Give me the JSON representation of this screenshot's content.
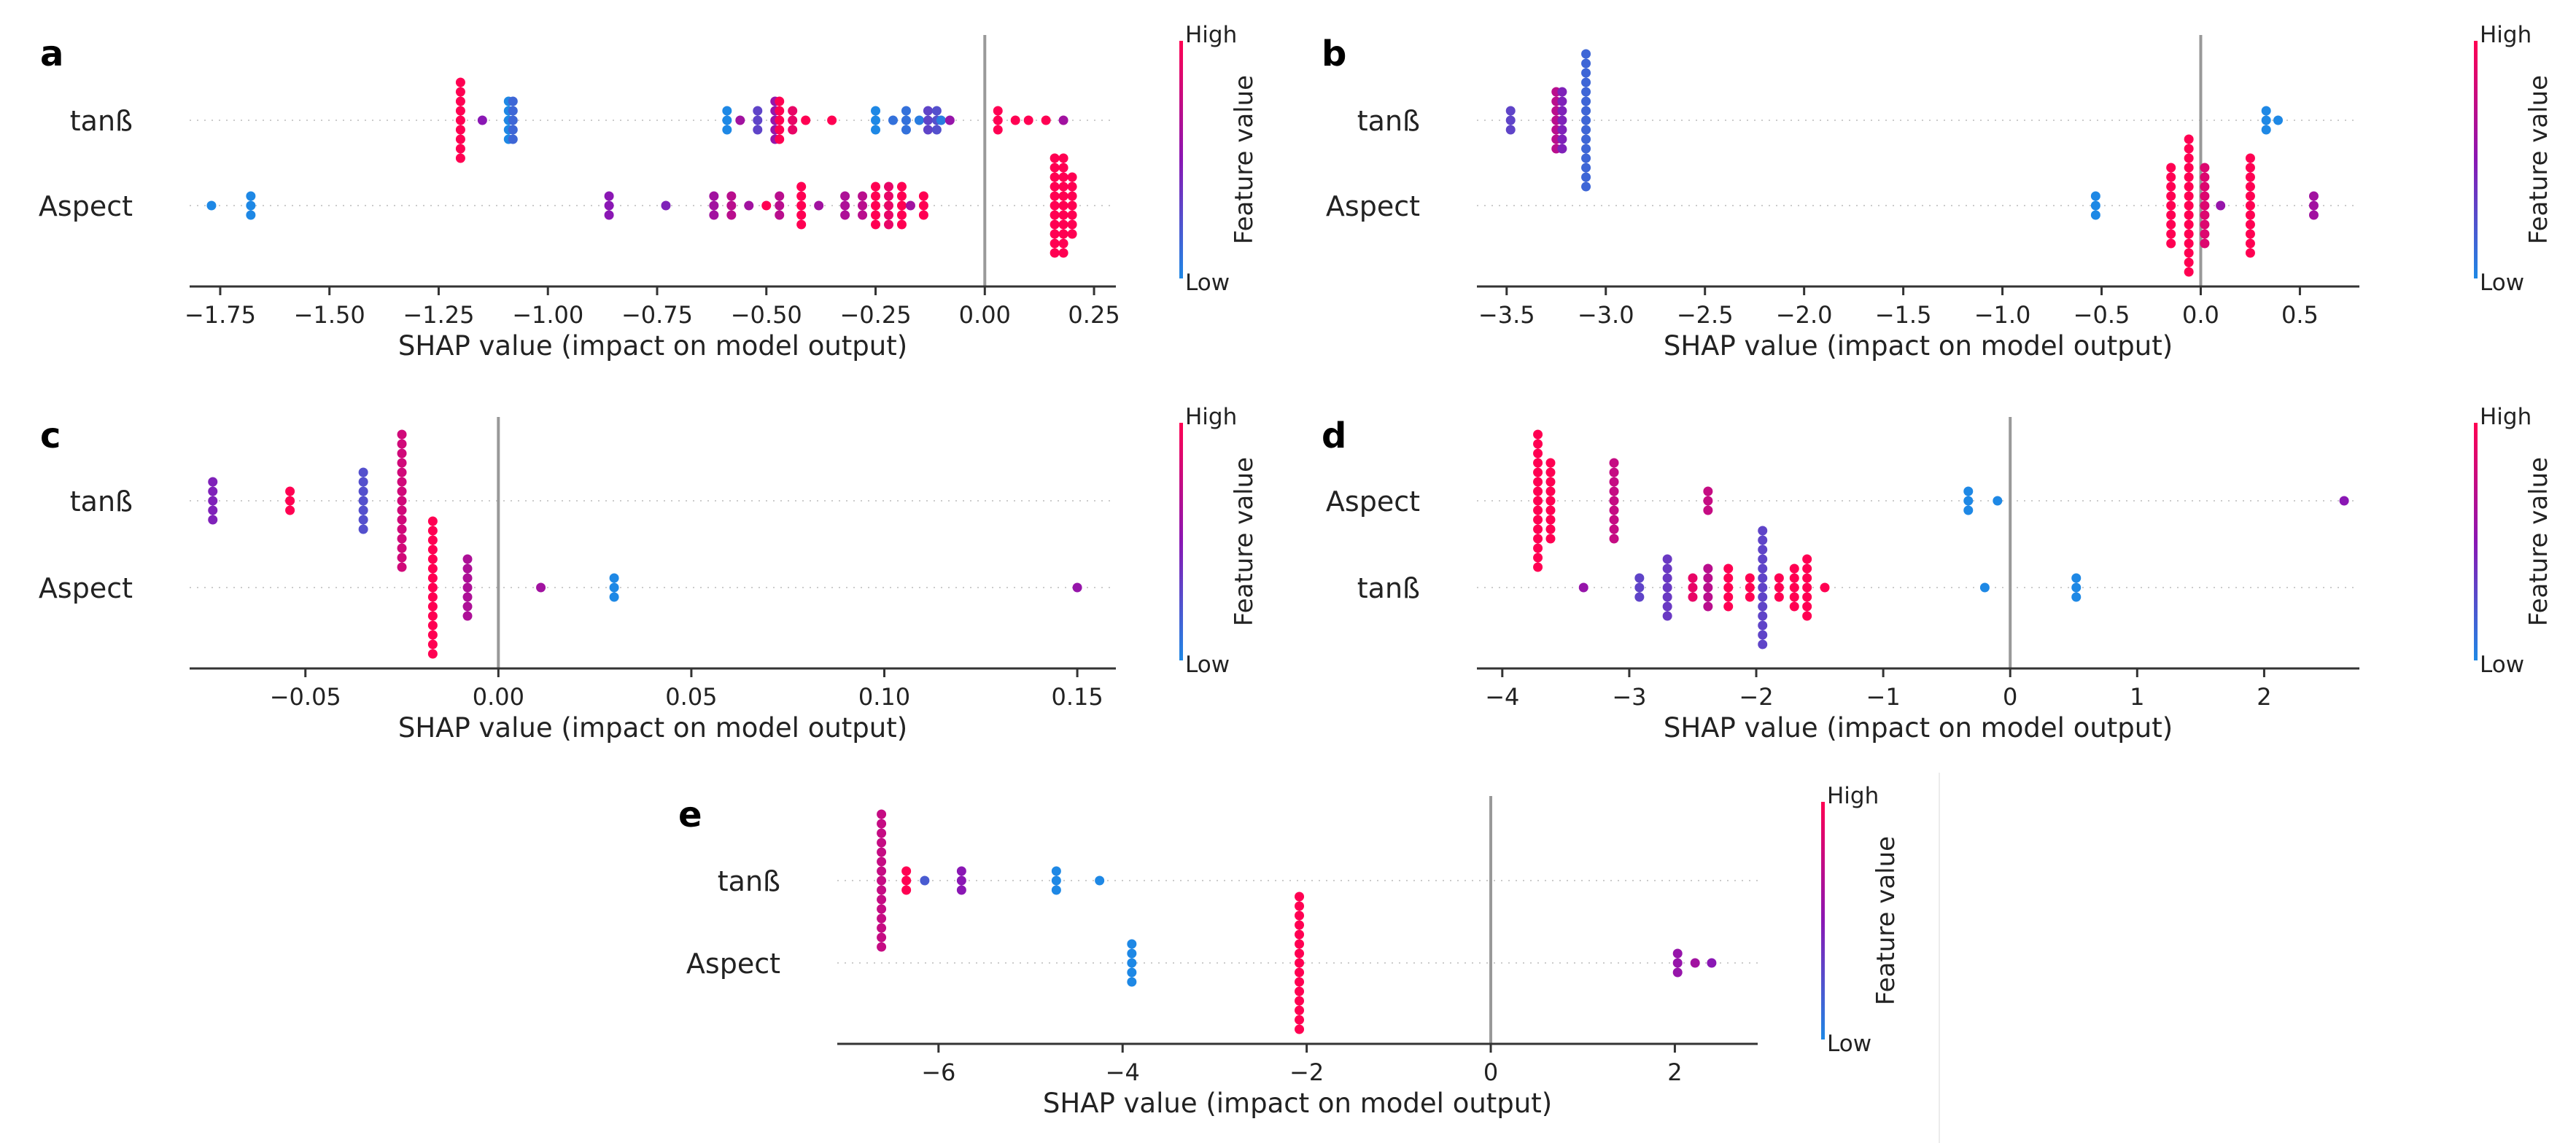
{
  "colors": {
    "low": "#1e88e5",
    "mid": "#8a17b4",
    "high": "#ff0052",
    "axis": "#333333",
    "zero_line": "#999999",
    "row_line": "#cccccc"
  },
  "chart_data": [
    {
      "id": "a",
      "type": "scatter",
      "panel_label": "a",
      "features": [
        "tanß",
        "Aspect"
      ],
      "xlabel": "SHAP value (impact on model output)",
      "xlim": [
        -1.82,
        0.3
      ],
      "xticks": [
        -1.75,
        -1.5,
        -1.25,
        -1.0,
        -0.75,
        -0.5,
        -0.25,
        0.0,
        0.25
      ],
      "xtick_labels": [
        "−1.75",
        "−1.50",
        "−1.25",
        "−1.00",
        "−0.75",
        "−0.50",
        "−0.25",
        "0.00",
        "0.25"
      ],
      "colorbar": {
        "label": "Feature value",
        "high": "High",
        "low": "Low"
      },
      "points": [
        [
          [
            -1.2,
            1.0,
            9
          ],
          [
            -1.15,
            0.5,
            1
          ],
          [
            -1.09,
            0.0,
            5
          ],
          [
            -1.08,
            0.15,
            5
          ],
          [
            -0.59,
            0.0,
            3
          ],
          [
            -0.56,
            0.6,
            1
          ],
          [
            -0.52,
            0.3,
            3
          ],
          [
            -0.48,
            0.55,
            5
          ],
          [
            -0.47,
            1.0,
            5
          ],
          [
            -0.44,
            0.9,
            3
          ],
          [
            -0.41,
            1.0,
            1
          ],
          [
            -0.35,
            1.0,
            1
          ],
          [
            -0.25,
            0.0,
            3
          ],
          [
            -0.21,
            0.1,
            1
          ],
          [
            -0.18,
            0.1,
            3
          ],
          [
            -0.15,
            0.05,
            1
          ],
          [
            -0.13,
            0.3,
            3
          ],
          [
            -0.11,
            0.25,
            3
          ],
          [
            -0.1,
            0.05,
            1
          ],
          [
            -0.08,
            0.55,
            1
          ],
          [
            0.03,
            1.0,
            3
          ],
          [
            0.07,
            1.0,
            1
          ],
          [
            0.1,
            1.0,
            1
          ],
          [
            0.14,
            1.0,
            1
          ],
          [
            0.18,
            0.6,
            1
          ]
        ],
        [
          [
            -1.77,
            0.0,
            1
          ],
          [
            -1.68,
            0.0,
            3
          ],
          [
            -0.86,
            0.5,
            3
          ],
          [
            -0.73,
            0.45,
            1
          ],
          [
            -0.62,
            0.6,
            3
          ],
          [
            -0.58,
            0.7,
            3
          ],
          [
            -0.54,
            0.6,
            1
          ],
          [
            -0.5,
            1.0,
            1
          ],
          [
            -0.47,
            0.7,
            3
          ],
          [
            -0.42,
            1.0,
            5
          ],
          [
            -0.38,
            0.6,
            1
          ],
          [
            -0.32,
            0.65,
            3
          ],
          [
            -0.28,
            0.7,
            3
          ],
          [
            -0.25,
            1.0,
            5
          ],
          [
            -0.22,
            0.9,
            5
          ],
          [
            -0.19,
            1.0,
            5
          ],
          [
            -0.17,
            0.6,
            1
          ],
          [
            -0.14,
            1.0,
            3
          ],
          [
            0.16,
            1.0,
            11
          ],
          [
            0.18,
            1.0,
            11
          ],
          [
            0.2,
            1.0,
            7
          ]
        ]
      ]
    },
    {
      "id": "b",
      "type": "scatter",
      "panel_label": "b",
      "features": [
        "tanß",
        "Aspect"
      ],
      "xlabel": "SHAP value (impact on model output)",
      "xlim": [
        -3.65,
        0.8
      ],
      "xticks": [
        -3.5,
        -3.0,
        -2.5,
        -2.0,
        -1.5,
        -1.0,
        -0.5,
        0.0,
        0.5
      ],
      "xtick_labels": [
        "−3.5",
        "−3.0",
        "−2.5",
        "−2.0",
        "−1.5",
        "−1.0",
        "−0.5",
        "0.0",
        "0.5"
      ],
      "colorbar": {
        "label": "Feature value",
        "high": "High",
        "low": "Low"
      },
      "points": [
        [
          [
            -3.48,
            0.3,
            3
          ],
          [
            -3.25,
            0.7,
            7
          ],
          [
            -3.22,
            0.45,
            7
          ],
          [
            -3.1,
            0.15,
            15
          ],
          [
            0.33,
            0.0,
            3
          ],
          [
            0.39,
            0.0,
            1
          ]
        ],
        [
          [
            -0.53,
            0.0,
            3
          ],
          [
            -0.15,
            1.0,
            9
          ],
          [
            -0.06,
            1.0,
            15
          ],
          [
            0.02,
            0.85,
            9
          ],
          [
            0.1,
            0.55,
            1
          ],
          [
            0.25,
            1.0,
            11
          ],
          [
            0.57,
            0.6,
            3
          ]
        ]
      ]
    },
    {
      "id": "c",
      "type": "scatter",
      "panel_label": "c",
      "features": [
        "tanß",
        "Aspect"
      ],
      "xlabel": "SHAP value (impact on model output)",
      "xlim": [
        -0.08,
        0.16
      ],
      "xticks": [
        -0.05,
        0.0,
        0.05,
        0.1,
        0.15
      ],
      "xtick_labels": [
        "−0.05",
        "0.00",
        "0.05",
        "0.10",
        "0.15"
      ],
      "colorbar": {
        "label": "Feature value",
        "high": "High",
        "low": "Low"
      },
      "points": [
        [
          [
            -0.074,
            0.45,
            5
          ],
          [
            -0.054,
            1.0,
            3
          ],
          [
            -0.035,
            0.25,
            7
          ],
          [
            -0.025,
            0.8,
            15
          ]
        ],
        [
          [
            -0.017,
            1.0,
            15
          ],
          [
            -0.008,
            0.65,
            7
          ],
          [
            0.011,
            0.6,
            1
          ],
          [
            0.03,
            0.0,
            3
          ],
          [
            0.15,
            0.55,
            1
          ]
        ]
      ]
    },
    {
      "id": "d",
      "type": "scatter",
      "panel_label": "d",
      "features": [
        "Aspect",
        "tanß"
      ],
      "xlabel": "SHAP value (impact on model output)",
      "xlim": [
        -4.2,
        2.75
      ],
      "xticks": [
        -4,
        -3,
        -2,
        -1,
        0,
        1,
        2
      ],
      "xtick_labels": [
        "−4",
        "−3",
        "−2",
        "−1",
        "0",
        "1",
        "2"
      ],
      "colorbar": {
        "label": "Feature value",
        "high": "High",
        "low": "Low"
      },
      "points": [
        [
          [
            -3.72,
            1.0,
            15
          ],
          [
            -3.62,
            1.0,
            9
          ],
          [
            -3.12,
            0.75,
            9
          ],
          [
            -2.38,
            0.75,
            3
          ],
          [
            -0.33,
            0.0,
            3
          ],
          [
            -0.1,
            0.0,
            1
          ],
          [
            2.63,
            0.5,
            1
          ]
        ],
        [
          [
            -3.36,
            0.55,
            1
          ],
          [
            -2.92,
            0.3,
            3
          ],
          [
            -2.7,
            0.35,
            7
          ],
          [
            -2.5,
            0.9,
            3
          ],
          [
            -2.38,
            0.7,
            5
          ],
          [
            -2.22,
            1.0,
            5
          ],
          [
            -2.05,
            1.0,
            3
          ],
          [
            -1.95,
            0.3,
            13
          ],
          [
            -1.82,
            1.0,
            3
          ],
          [
            -1.7,
            1.0,
            5
          ],
          [
            -1.6,
            1.0,
            7
          ],
          [
            -1.46,
            1.0,
            1
          ],
          [
            -0.2,
            0.0,
            1
          ],
          [
            0.52,
            0.0,
            3
          ]
        ]
      ]
    },
    {
      "id": "e",
      "type": "scatter",
      "panel_label": "e",
      "features": [
        "tanß",
        "Aspect"
      ],
      "xlabel": "SHAP value (impact on model output)",
      "xlim": [
        -7.1,
        2.9
      ],
      "xticks": [
        -6,
        -4,
        -2,
        0,
        2
      ],
      "xtick_labels": [
        "−6",
        "−4",
        "−2",
        "0",
        "2"
      ],
      "colorbar": {
        "label": "Feature value",
        "high": "High",
        "low": "Low"
      },
      "points": [
        [
          [
            -6.62,
            0.75,
            15
          ],
          [
            -6.35,
            1.0,
            3
          ],
          [
            -6.15,
            0.2,
            1
          ],
          [
            -5.75,
            0.5,
            3
          ],
          [
            -4.72,
            0.0,
            3
          ],
          [
            -4.25,
            0.0,
            1
          ]
        ],
        [
          [
            -3.9,
            0.0,
            5
          ],
          [
            -2.08,
            1.0,
            15
          ],
          [
            2.03,
            0.55,
            3
          ],
          [
            2.22,
            0.6,
            1
          ],
          [
            2.4,
            0.5,
            1
          ]
        ]
      ]
    }
  ]
}
